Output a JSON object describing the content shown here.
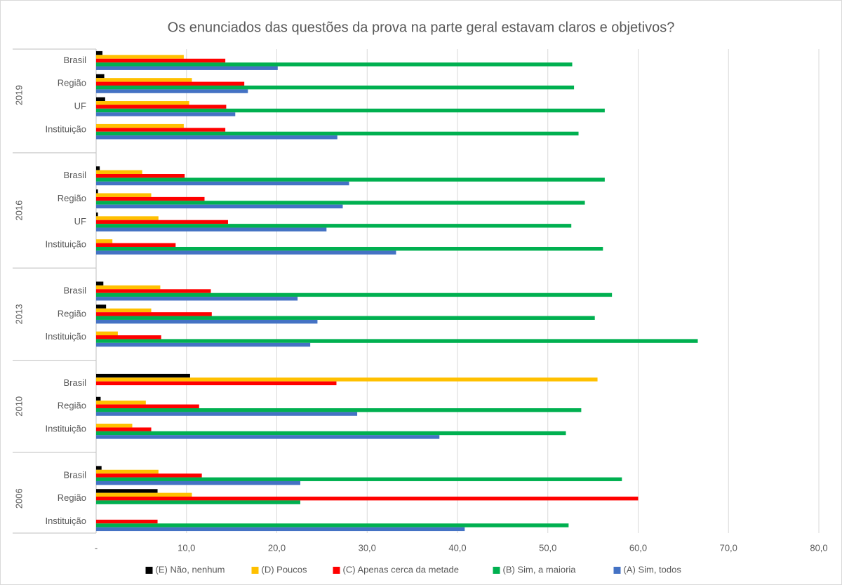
{
  "chart_data": {
    "type": "bar",
    "orientation": "horizontal",
    "title": "Os enunciados das questões da prova na parte geral estavam claros e objetivos?",
    "groups": [
      {
        "name": "2019",
        "categories": [
          "Brasil",
          "Região",
          "UF",
          "Instituição"
        ]
      },
      {
        "name": "2016",
        "categories": [
          "Brasil",
          "Região",
          "UF",
          "Instituição"
        ]
      },
      {
        "name": "2013",
        "categories": [
          "Brasil",
          "Região",
          "Instituição"
        ]
      },
      {
        "name": "2010",
        "categories": [
          "Brasil",
          "Região",
          "Instituição"
        ]
      },
      {
        "name": "2006",
        "categories": [
          "Brasil",
          "Região",
          "Instituição"
        ]
      }
    ],
    "series": [
      {
        "name": "(E) Não, nenhum",
        "color": "#000000",
        "values": [
          0.7,
          0.9,
          1.0,
          null,
          0.4,
          0.2,
          0.2,
          null,
          0.8,
          1.1,
          null,
          10.4,
          0.5,
          null,
          0.6,
          6.8,
          null
        ]
      },
      {
        "name": "(D) Poucos",
        "color": "#ffc000",
        "values": [
          9.7,
          10.6,
          10.3,
          9.7,
          5.1,
          6.1,
          6.9,
          1.8,
          7.1,
          6.1,
          2.4,
          55.5,
          5.5,
          4.0,
          6.9,
          10.6,
          null
        ]
      },
      {
        "name": "(C) Apenas cerca da metade",
        "color": "#ff0000",
        "values": [
          14.3,
          16.4,
          14.4,
          14.3,
          9.8,
          12.0,
          14.6,
          8.8,
          12.7,
          12.8,
          7.2,
          26.6,
          11.4,
          6.1,
          11.7,
          60.0,
          6.8
        ]
      },
      {
        "name": "(B) Sim, a maioria",
        "color": "#00b050",
        "values": [
          52.7,
          52.9,
          56.3,
          53.4,
          56.3,
          54.1,
          52.6,
          56.1,
          57.1,
          55.2,
          66.6,
          null,
          53.7,
          52.0,
          58.2,
          22.6,
          52.3
        ]
      },
      {
        "name": "(A) Sim, todos",
        "color": "#4472c4",
        "values": [
          20.1,
          16.8,
          15.4,
          26.7,
          28.0,
          27.3,
          25.5,
          33.2,
          22.3,
          24.5,
          23.7,
          null,
          28.9,
          38.0,
          22.6,
          null,
          40.8
        ]
      }
    ],
    "xlim": [
      0,
      80
    ],
    "xticks": [
      {
        "value": 0,
        "label": "-"
      },
      {
        "value": 10,
        "label": "10,0"
      },
      {
        "value": 20,
        "label": "20,0"
      },
      {
        "value": 30,
        "label": "30,0"
      },
      {
        "value": 40,
        "label": "40,0"
      },
      {
        "value": 50,
        "label": "50,0"
      },
      {
        "value": 60,
        "label": "60,0"
      },
      {
        "value": 70,
        "label": "70,0"
      },
      {
        "value": 80,
        "label": "80,0"
      }
    ],
    "grid": true,
    "legend": "bottom"
  }
}
